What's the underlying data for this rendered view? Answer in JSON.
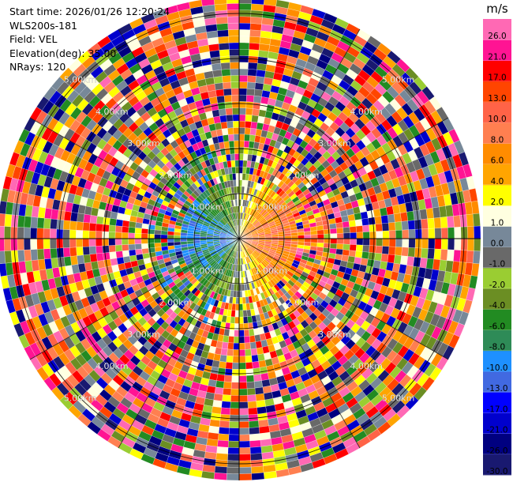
{
  "info": {
    "start_time": "Start time: 2026/01/26 12:20:24",
    "instrument": "WLS200s-181",
    "field": "Field: VEL",
    "elevation": "Elevation(deg): 35.00",
    "nrays": "NRays: 120"
  },
  "chart_data": {
    "type": "heatmap",
    "projection": "polar-ppi",
    "field": "VEL",
    "units": "m/s",
    "n_rays": 120,
    "range_rings_km": [
      "1.00km",
      "2.00km",
      "3.00km",
      "4.00km",
      "5.00km"
    ],
    "colorbar": {
      "label": "m/s",
      "levels": [
        "-30.0",
        "-26.0",
        "-21.0",
        "-17.0",
        "-13.0",
        "-10.0",
        "-8.0",
        "-6.0",
        "-4.0",
        "-2.0",
        "-1.0",
        "0.0",
        "1.0",
        "2.0",
        "4.0",
        "6.0",
        "8.0",
        "10.0",
        "13.0",
        "17.0",
        "21.0",
        "26.0"
      ],
      "colors": [
        "#191970",
        "#000080",
        "#0000cd",
        "#0000ff",
        "#4169e1",
        "#1e90ff",
        "#2e8b57",
        "#228b22",
        "#6b8e23",
        "#9acd32",
        "#696969",
        "#778899",
        "#ffffe0",
        "#ffff00",
        "#ffa500",
        "#ff8c00",
        "#ff7f50",
        "#ff6347",
        "#ff4500",
        "#ff0000",
        "#ff1493",
        "#ff69b4"
      ]
    }
  }
}
